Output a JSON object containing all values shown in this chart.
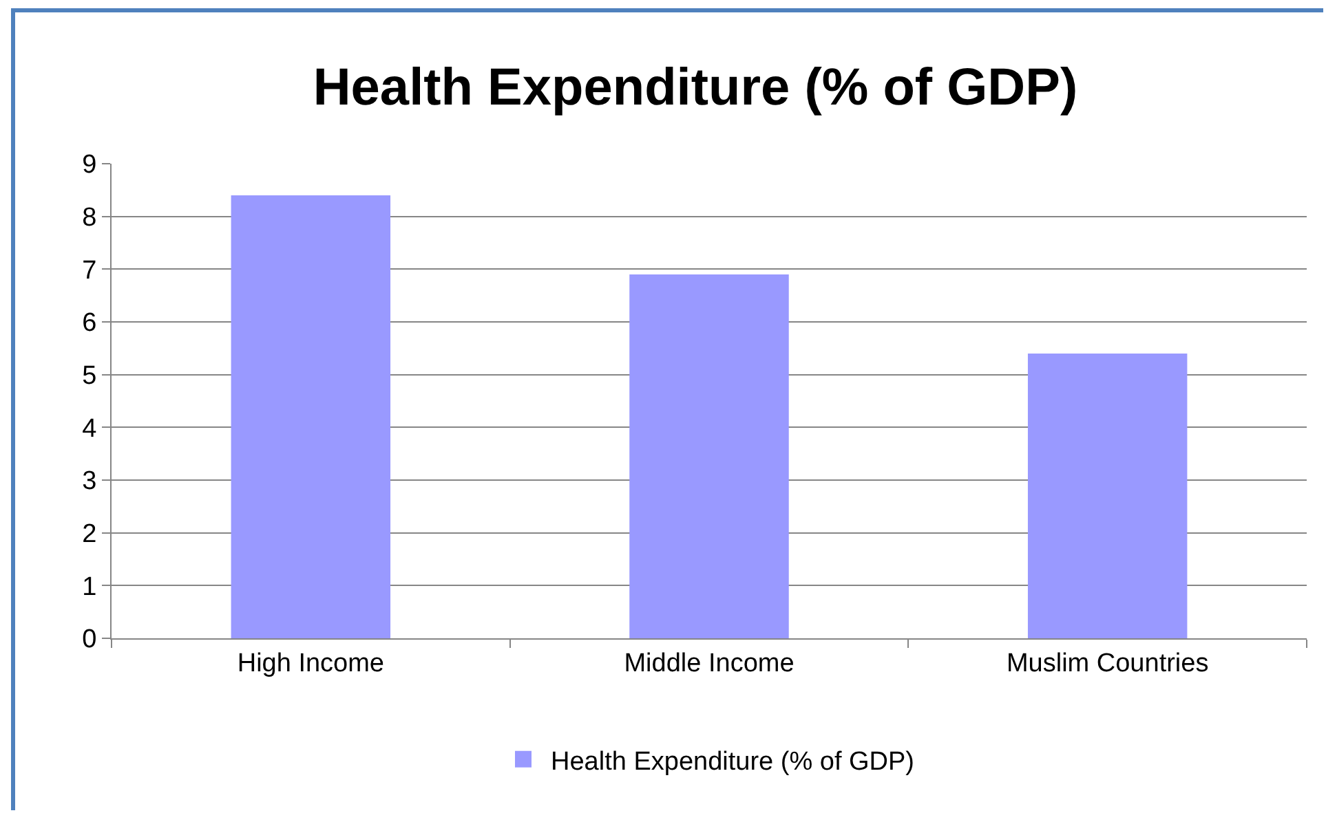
{
  "chart_data": {
    "type": "bar",
    "title": "Health Expenditure (% of GDP)",
    "categories": [
      "High Income",
      "Middle Income",
      "Muslim Countries"
    ],
    "series": [
      {
        "name": "Health Expenditure (% of GDP)",
        "color": "#9999ff",
        "values": [
          8.4,
          6.9,
          5.4
        ]
      }
    ],
    "ylim": [
      0,
      9
    ],
    "yticks": [
      0,
      1,
      2,
      3,
      4,
      5,
      6,
      7,
      8,
      9
    ],
    "grid": "y",
    "legend": "bottom"
  }
}
